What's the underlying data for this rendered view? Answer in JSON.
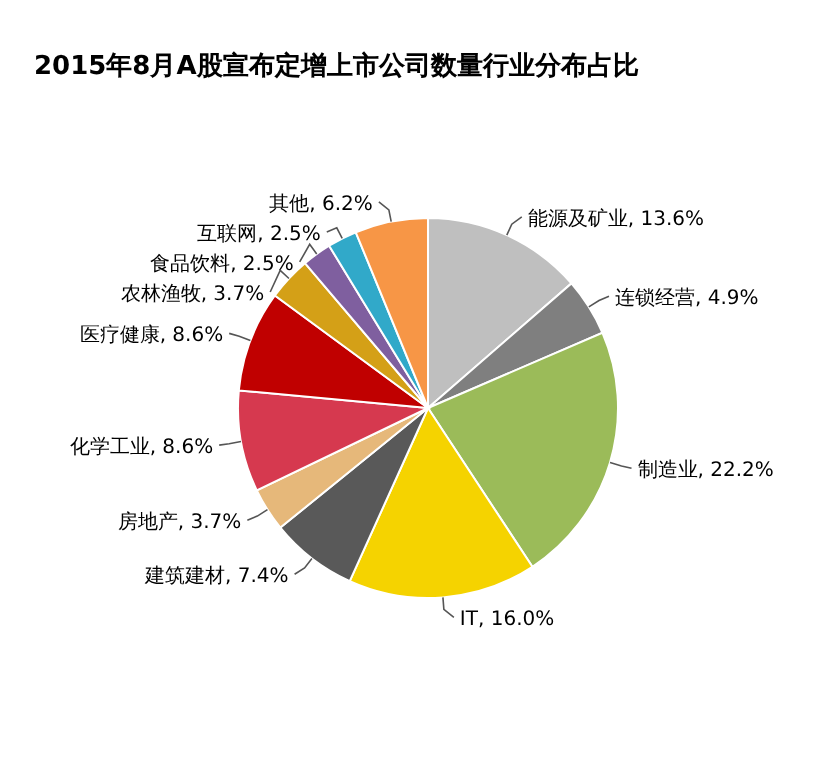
{
  "chart_data": {
    "type": "pie",
    "title": "2015年8月A股宣布定增上市公司数量行业分布占比",
    "categories": [
      "能源及矿业",
      "连锁经营",
      "制造业",
      "IT",
      "建筑建材",
      "房地产",
      "化学工业",
      "医疗健康",
      "农林渔牧",
      "食品饮料",
      "互联网",
      "其他"
    ],
    "values": [
      13.6,
      4.9,
      22.2,
      16.0,
      7.4,
      3.7,
      8.6,
      8.6,
      3.7,
      2.5,
      2.5,
      6.2
    ],
    "colors": [
      "#bfbfbf",
      "#7f7f7f",
      "#9bbb59",
      "#f5d300",
      "#595959",
      "#e6b87a",
      "#d6394f",
      "#c00000",
      "#d4a017",
      "#7f5f9f",
      "#31a9c9",
      "#f79646"
    ],
    "value_labels": [
      ", 13.6%",
      ", 4.9%",
      ", 22.2%",
      ", 16.0%",
      ", 7.4%",
      ", 3.7%",
      ", 8.6%",
      ", 8.6%",
      ", 3.7%",
      ", 2.5%",
      ", 2.5%",
      ", 6.2%"
    ]
  }
}
